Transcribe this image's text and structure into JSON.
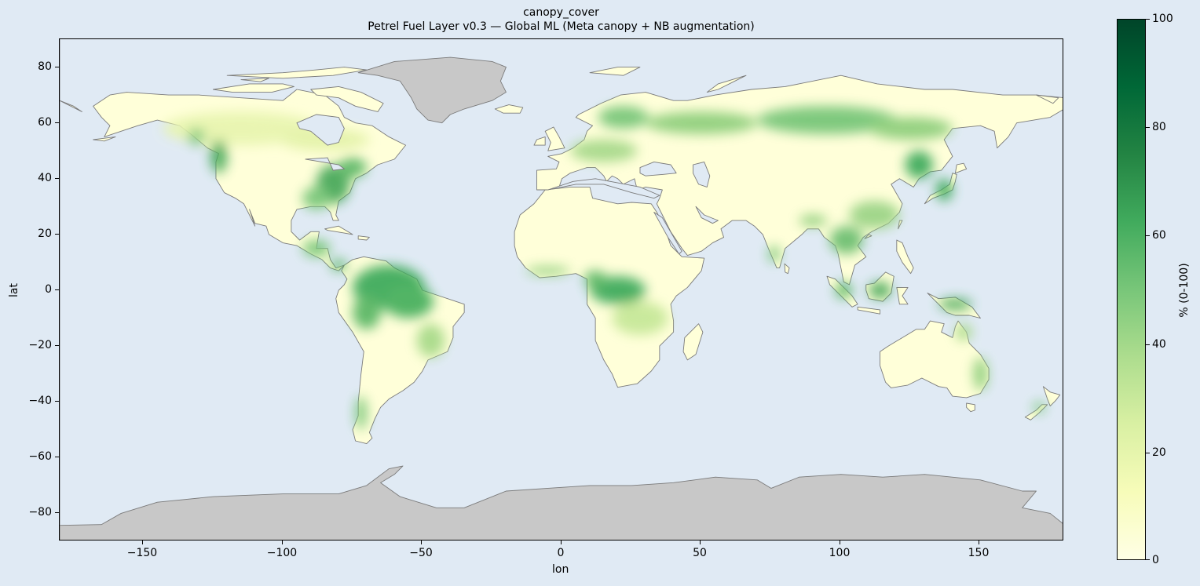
{
  "title": "canopy_cover",
  "subtitle": "Petrel Fuel Layer v0.3 — Global ML (Meta canopy + NB augmentation)",
  "xlabel": "lon",
  "ylabel": "lat",
  "x_ticks": [
    "−150",
    "−100",
    "−50",
    "0",
    "50",
    "100",
    "150"
  ],
  "y_ticks": [
    "80",
    "60",
    "40",
    "20",
    "0",
    "−20",
    "−40",
    "−60",
    "−80"
  ],
  "colorbar": {
    "label": "% (0-100)",
    "ticks": [
      "100",
      "80",
      "60",
      "40",
      "20",
      "0"
    ],
    "range": [
      0,
      100
    ],
    "colors": [
      "#ffffe5",
      "#f7fcb9",
      "#d9f0a3",
      "#addd8e",
      "#78c679",
      "#41ab5d",
      "#238443",
      "#006837",
      "#004529"
    ]
  },
  "map": {
    "x_range": [
      -180,
      180
    ],
    "y_range": [
      -90,
      90
    ],
    "ocean_color": "#e0eaf4",
    "ice_color": "#c8c8c8",
    "land_low_color": "#ffffd9",
    "coastline_color": "#7a7a7a"
  }
}
